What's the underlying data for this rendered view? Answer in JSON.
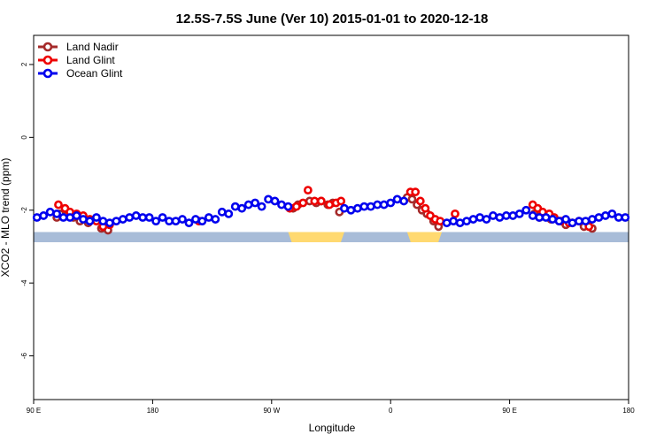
{
  "chart_data": {
    "type": "scatter",
    "title": "12.5S-7.5S June (Ver 10)   2015-01-01 to 2020-12-18",
    "xlabel": "Longitude",
    "ylabel": "XCO2 - MLO trend (ppm)",
    "xlim": [
      0,
      360
    ],
    "ylim": [
      -7.2,
      2.8
    ],
    "x_ticks": [
      {
        "value": 0,
        "label": "90 E"
      },
      {
        "value": 72,
        "label": "180"
      },
      {
        "value": 144,
        "label": "90 W"
      },
      {
        "value": 216,
        "label": "0"
      },
      {
        "value": 288,
        "label": "90 E"
      },
      {
        "value": 360,
        "label": "180"
      }
    ],
    "y_ticks": [
      {
        "value": 2,
        "label": "2"
      },
      {
        "value": 0,
        "label": "0"
      },
      {
        "value": -2,
        "label": "-2"
      },
      {
        "value": -4,
        "label": "-4"
      },
      {
        "value": -6,
        "label": "-6"
      }
    ],
    "land_band": {
      "y_top": -2.6,
      "y_bottom": -2.88,
      "ocean_color": "#a8bcd8",
      "land_color": "#ffd970"
    },
    "land_segments": [
      [
        154,
        188
      ],
      [
        226,
        247
      ]
    ],
    "series": [
      {
        "name": "Land Nadir",
        "color": "#a52a2a",
        "x": [
          14,
          16,
          20,
          24,
          28,
          33,
          41,
          45,
          157,
          160,
          167,
          171,
          174,
          178,
          181,
          185,
          226,
          229,
          232,
          235,
          238,
          242,
          245,
          303,
          306,
          310,
          313,
          318,
          322,
          326,
          333,
          338
        ],
        "y": [
          -2.2,
          -2.1,
          -2.15,
          -2.2,
          -2.3,
          -2.35,
          -2.5,
          -2.55,
          -1.95,
          -1.85,
          -1.75,
          -1.8,
          -1.75,
          -1.85,
          -1.8,
          -2.05,
          -1.65,
          -1.7,
          -1.85,
          -2.0,
          -2.1,
          -2.3,
          -2.45,
          -2.1,
          -2.2,
          -2.15,
          -2.25,
          -2.3,
          -2.4,
          -2.35,
          -2.45,
          -2.5
        ]
      },
      {
        "name": "Land Glint",
        "color": "#ee0000",
        "x": [
          15,
          19,
          22,
          26,
          30,
          34,
          38,
          42,
          46,
          100,
          155,
          159,
          163,
          166,
          170,
          174,
          179,
          183,
          186,
          228,
          231,
          234,
          237,
          240,
          243,
          246,
          255,
          302,
          305,
          308,
          312,
          315,
          319,
          324,
          330,
          336
        ],
        "y": [
          -1.85,
          -1.95,
          -2.05,
          -2.1,
          -2.15,
          -2.25,
          -2.3,
          -2.45,
          -2.4,
          -2.3,
          -1.95,
          -1.9,
          -1.8,
          -1.45,
          -1.75,
          -1.75,
          -1.85,
          -1.8,
          -1.75,
          -1.5,
          -1.5,
          -1.75,
          -1.95,
          -2.15,
          -2.25,
          -2.3,
          -2.1,
          -1.85,
          -1.95,
          -2.05,
          -2.1,
          -2.2,
          -2.3,
          -2.35,
          -2.3,
          -2.45
        ]
      },
      {
        "name": "Ocean Glint",
        "color": "#0000ee",
        "x": [
          2,
          6,
          10,
          14,
          18,
          22,
          26,
          30,
          34,
          38,
          42,
          46,
          50,
          54,
          58,
          62,
          66,
          70,
          74,
          78,
          82,
          86,
          90,
          94,
          98,
          102,
          106,
          110,
          114,
          118,
          122,
          126,
          130,
          134,
          138,
          142,
          146,
          150,
          154,
          188,
          192,
          196,
          200,
          204,
          208,
          212,
          216,
          220,
          224,
          250,
          254,
          258,
          262,
          266,
          270,
          274,
          278,
          282,
          286,
          290,
          294,
          298,
          302,
          306,
          310,
          314,
          318,
          322,
          326,
          330,
          334,
          338,
          342,
          346,
          350,
          354,
          358
        ],
        "y": [
          -2.2,
          -2.15,
          -2.05,
          -2.1,
          -2.2,
          -2.2,
          -2.15,
          -2.25,
          -2.3,
          -2.2,
          -2.3,
          -2.35,
          -2.3,
          -2.25,
          -2.2,
          -2.15,
          -2.2,
          -2.2,
          -2.3,
          -2.2,
          -2.3,
          -2.3,
          -2.25,
          -2.35,
          -2.25,
          -2.3,
          -2.2,
          -2.25,
          -2.05,
          -2.1,
          -1.9,
          -1.95,
          -1.85,
          -1.8,
          -1.9,
          -1.7,
          -1.75,
          -1.85,
          -1.9,
          -1.95,
          -2.0,
          -1.95,
          -1.9,
          -1.9,
          -1.85,
          -1.85,
          -1.8,
          -1.7,
          -1.75,
          -2.35,
          -2.3,
          -2.35,
          -2.3,
          -2.25,
          -2.2,
          -2.25,
          -2.15,
          -2.2,
          -2.15,
          -2.15,
          -2.1,
          -2.0,
          -2.15,
          -2.2,
          -2.2,
          -2.25,
          -2.3,
          -2.25,
          -2.35,
          -2.3,
          -2.3,
          -2.25,
          -2.2,
          -2.15,
          -2.1,
          -2.2,
          -2.2
        ]
      }
    ],
    "legend": {
      "position": "top-left"
    }
  }
}
